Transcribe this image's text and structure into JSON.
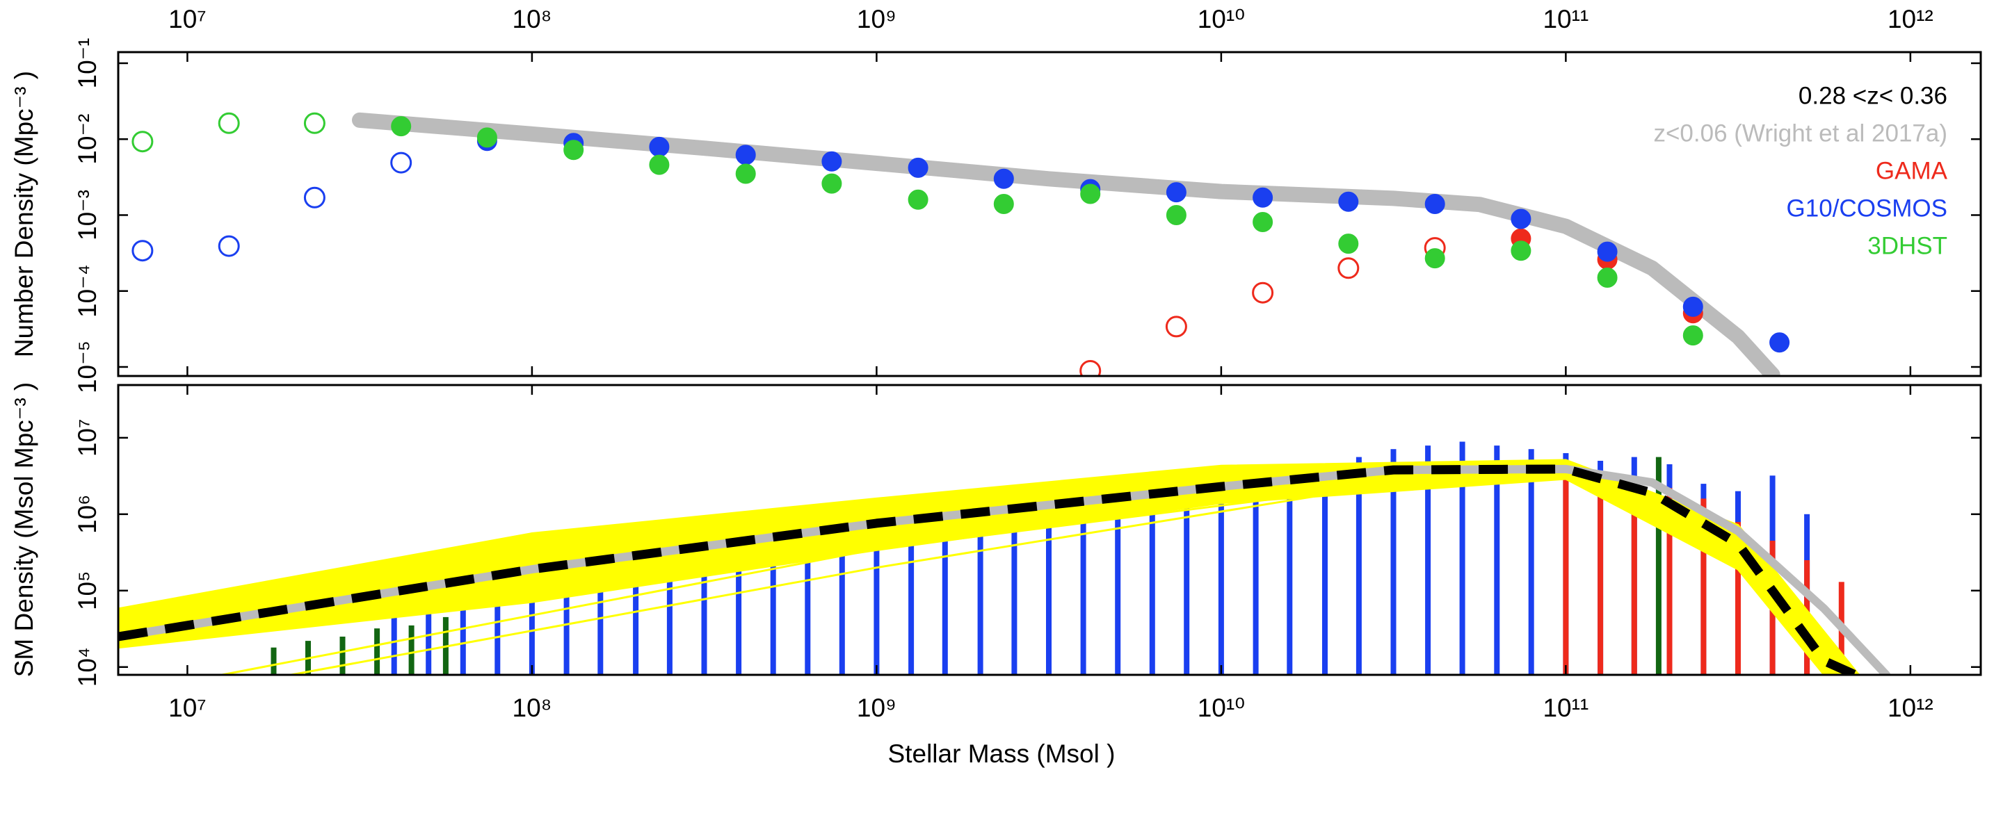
{
  "chart_data": [
    {
      "type": "scatter",
      "ylabel": "Number Density (Mpc⁻³ )",
      "annotation": "0.28 <z< 0.36",
      "legend": "top-right",
      "log_x": true,
      "log_y": true,
      "xlim": [
        6300000.0,
        1600000000000.0
      ],
      "xticks": [
        {
          "value": 10000000.0,
          "label": "10⁷"
        },
        {
          "value": 100000000.0,
          "label": "10⁸"
        },
        {
          "value": 1000000000.0,
          "label": "10⁹"
        },
        {
          "value": 10000000000.0,
          "label": "10¹⁰"
        },
        {
          "value": 100000000000.0,
          "label": "10¹¹"
        },
        {
          "value": 1000000000000.0,
          "label": "10¹²"
        }
      ],
      "ylim": [
        7.6e-06,
        0.14
      ],
      "yticks": [
        {
          "value": 0.1,
          "label": "10⁻¹"
        },
        {
          "value": 0.01,
          "label": "10⁻²"
        },
        {
          "value": 0.001,
          "label": "10⁻³"
        },
        {
          "value": 0.0001,
          "label": "10⁻⁴"
        },
        {
          "value": 1e-05,
          "label": "10⁻⁵"
        }
      ],
      "series": [
        {
          "name": "z<0.06 (Wright et al 2017a)",
          "color": "#bbbbbb",
          "line": true,
          "x": [
            31600000.0,
            100000000.0,
            316000000.0,
            1000000000.0,
            3160000000.0,
            10000000000.0,
            31600000000.0,
            56200000000.0,
            100000000000.0,
            178000000000.0,
            316000000000.0,
            398000000000.0
          ],
          "values": [
            0.0178,
            0.0117,
            0.0076,
            0.0048,
            0.003,
            0.00204,
            0.00166,
            0.00138,
            0.00071,
            0.0002,
            2.5e-05,
            7.9e-06
          ]
        },
        {
          "name": "GAMA",
          "color": "#ee2a1c",
          "x": [
            4170000000.0,
            7410000000.0,
            13200000000.0,
            23400000000.0,
            41700000000.0,
            74100000000.0,
            132000000000.0,
            234000000000.0
          ],
          "values": [
            8.9e-06,
            3.4e-05,
            9.5e-05,
            0.0002,
            0.00037,
            0.00049,
            0.00026,
            5.1e-05
          ],
          "filled": [
            false,
            false,
            false,
            false,
            false,
            true,
            true,
            true
          ]
        },
        {
          "name": "G10/COSMOS",
          "color": "#1a3ff0",
          "x": [
            7410000.0,
            13200000.0,
            23400000.0,
            41700000.0,
            74100000.0,
            132000000.0,
            234000000.0,
            417000000.0,
            741000000.0,
            1320000000.0,
            2340000000.0,
            4170000000.0,
            7410000000.0,
            13200000000.0,
            23400000000.0,
            41700000000.0,
            74100000000.0,
            132000000000.0,
            234000000000.0,
            417000000000.0
          ],
          "values": [
            0.00034,
            0.00039,
            0.0017,
            0.0049,
            0.0095,
            0.0089,
            0.0079,
            0.0062,
            0.0051,
            0.0042,
            0.003,
            0.0022,
            0.002,
            0.0017,
            0.0015,
            0.0014,
            0.00089,
            0.00033,
            6.2e-05,
            2.1e-05
          ],
          "filled": [
            false,
            false,
            false,
            false,
            true,
            true,
            true,
            true,
            true,
            true,
            true,
            true,
            true,
            true,
            true,
            true,
            true,
            true,
            true,
            true
          ]
        },
        {
          "name": "3DHST",
          "color": "#33cc33",
          "x": [
            7410000.0,
            13200000.0,
            23400000.0,
            41700000.0,
            74100000.0,
            132000000.0,
            234000000.0,
            417000000.0,
            741000000.0,
            1320000000.0,
            2340000000.0,
            4170000000.0,
            7410000000.0,
            13200000000.0,
            23400000000.0,
            41700000000.0,
            74100000000.0,
            132000000000.0,
            234000000000.0
          ],
          "values": [
            0.0093,
            0.0162,
            0.0162,
            0.0148,
            0.0105,
            0.0072,
            0.0046,
            0.0035,
            0.0026,
            0.0016,
            0.0014,
            0.0019,
            0.001,
            0.00081,
            0.00042,
            0.00027,
            0.00034,
            0.00015,
            2.6e-05
          ],
          "filled": [
            false,
            false,
            false,
            true,
            true,
            true,
            true,
            true,
            true,
            true,
            true,
            true,
            true,
            true,
            true,
            true,
            true,
            true,
            true
          ]
        }
      ]
    },
    {
      "type": "bar",
      "xlabel": "Stellar Mass (Msol )",
      "ylabel": "SM Density (Msol Mpc⁻³ )",
      "log_x": true,
      "log_y": true,
      "xlim": [
        6300000.0,
        1600000000000.0
      ],
      "xticks": [
        {
          "value": 10000000.0,
          "label": "10⁷"
        },
        {
          "value": 100000000.0,
          "label": "10⁸"
        },
        {
          "value": 1000000000.0,
          "label": "10⁹"
        },
        {
          "value": 10000000000.0,
          "label": "10¹⁰"
        },
        {
          "value": 100000000000.0,
          "label": "10¹¹"
        },
        {
          "value": 1000000000000.0,
          "label": "10¹²"
        }
      ],
      "ylim": [
        7900.0,
        49000000.0
      ],
      "yticks": [
        {
          "value": 10000.0,
          "label": "10⁴"
        },
        {
          "value": 100000.0,
          "label": "10⁵"
        },
        {
          "value": 1000000.0,
          "label": "10⁶"
        },
        {
          "value": 10000000.0,
          "label": "10⁷"
        }
      ],
      "bars": [
        {
          "color": "#1a3ff0",
          "x": [
            39800000.0,
            50100000.0,
            63100000.0,
            79400000.0,
            100000000.0,
            126000000.0,
            158000000.0,
            200000000.0,
            251000000.0,
            316000000.0,
            398000000.0,
            501000000.0,
            631000000.0,
            794000000.0,
            1000000000.0,
            1260000000.0,
            1580000000.0,
            2000000000.0,
            2510000000.0,
            3160000000.0,
            3980000000.0,
            5010000000.0,
            6310000000.0,
            7940000000.0,
            10000000000.0,
            12600000000.0,
            15800000000.0,
            20000000000.0,
            25100000000.0,
            31600000000.0,
            39800000000.0,
            50100000000.0,
            63100000000.0,
            79400000000.0,
            100000000000.0,
            126000000000.0,
            158000000000.0,
            200000000000.0,
            251000000000.0,
            316000000000.0,
            398000000000.0,
            501000000000.0
          ],
          "values": [
            56000.0,
            71000.0,
            79000.0,
            100000.0,
            140000.0,
            160000.0,
            180000.0,
            200000.0,
            220000.0,
            280000.0,
            320000.0,
            350000.0,
            450000.0,
            500000.0,
            560000.0,
            630000.0,
            710000.0,
            790000.0,
            890000.0,
            1000000.0,
            1100000.0,
            1300000.0,
            1400000.0,
            1800000.0,
            2000000.0,
            2500000.0,
            3200000.0,
            4000000.0,
            5600000.0,
            7100000.0,
            7900000.0,
            8900000.0,
            7900000.0,
            7100000.0,
            6300000.0,
            5000000.0,
            5600000.0,
            4500000.0,
            2500000.0,
            2000000.0,
            3200000.0,
            1000000.0
          ]
        },
        {
          "color": "#126612",
          "x": [
            17800000.0,
            22400000.0,
            28200000.0,
            35500000.0,
            44700000.0,
            56200000.0,
            186000000000.0
          ],
          "values": [
            18000.0,
            22000.0,
            25000.0,
            32000.0,
            35000.0,
            45000.0,
            5600000.0
          ]
        },
        {
          "color": "#ee2a1c",
          "x": [
            100000000000.0,
            126000000000.0,
            158000000000.0,
            200000000000.0,
            251000000000.0,
            316000000000.0,
            398000000000.0,
            501000000000.0,
            631000000000.0
          ],
          "values": [
            3200000.0,
            3200000.0,
            2800000.0,
            2200000.0,
            1600000.0,
            790000.0,
            450000.0,
            250000.0,
            130000.0
          ]
        }
      ],
      "band": {
        "color": "#ffff00",
        "upper": {
          "x": [
            6310000.0,
            100000000.0,
            1000000000.0,
            10000000000.0,
            100000000000.0,
            316000000000.0,
            708000000000.0
          ],
          "values": [
            58000.0,
            560000.0,
            1600000.0,
            4300000.0,
            5100000.0,
            720000.0,
            7900.0
          ]
        },
        "lower": {
          "x": [
            6310000.0,
            100000000.0,
            1000000000.0,
            10000000000.0,
            100000000000.0,
            316000000000.0,
            562000000000.0
          ],
          "values": [
            18000.0,
            71000.0,
            340000.0,
            1400000.0,
            2900000.0,
            190000.0,
            7900.0
          ]
        }
      },
      "lines": [
        {
          "color": "#ffff00",
          "x": [
            12600000.0,
            1000000000.0,
            31600000000.0
          ],
          "values": [
            7900.0,
            350000.0,
            2500000.0
          ]
        },
        {
          "color": "#ffff00",
          "x": [
            20000000.0,
            1000000000.0,
            20000000000.0
          ],
          "values": [
            7900.0,
            200000.0,
            1800000.0
          ]
        },
        {
          "color": "#bbbbbb",
          "thick": true,
          "x": [
            6310000.0,
            100000000.0,
            1000000000.0,
            10000000000.0,
            31600000000.0,
            100000000000.0,
            178000000000.0,
            316000000000.0,
            562000000000.0,
            851000000000.0
          ],
          "values": [
            25000.0,
            190000.0,
            760000.0,
            2300000.0,
            3800000.0,
            3900000.0,
            2600000.0,
            600000.0,
            58000.0,
            7900.0
          ]
        },
        {
          "color": "#000000",
          "thick": true,
          "dashed": true,
          "x": [
            6310000.0,
            100000000.0,
            1000000000.0,
            10000000000.0,
            31600000000.0,
            100000000000.0,
            178000000000.0,
            316000000000.0,
            562000000000.0,
            692000000000.0
          ],
          "values": [
            25000.0,
            190000.0,
            760000.0,
            2300000.0,
            3800000.0,
            3900000.0,
            1900000.0,
            410000.0,
            12000.0,
            7900.0
          ]
        }
      ]
    }
  ]
}
